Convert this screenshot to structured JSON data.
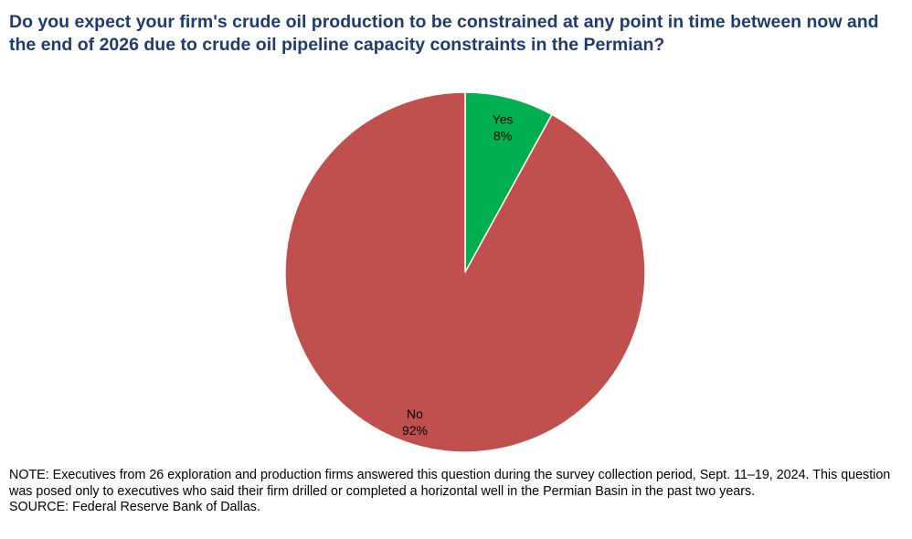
{
  "chart_data": {
    "type": "pie",
    "title": "Do you expect your firm's crude oil production to be constrained at any point in time between now and the end of 2026 due to crude oil pipeline capacity constraints in the Permian?",
    "slices": [
      {
        "label": "Yes",
        "value": 8,
        "value_label": "8%",
        "color": "#00b050"
      },
      {
        "label": "No",
        "value": 92,
        "value_label": "92%",
        "color": "#c0504d"
      }
    ],
    "start_angle_deg": 0,
    "direction": "clockwise",
    "legend": "none"
  },
  "footer": {
    "note": "NOTE: Executives from 26 exploration and production firms answered this question during the survey collection period, Sept. 11–19, 2024. This question was posed only to executives who said their firm drilled or completed a horizontal well in the Permian Basin in the past two years.",
    "source": "SOURCE: Federal Reserve Bank of Dallas."
  }
}
